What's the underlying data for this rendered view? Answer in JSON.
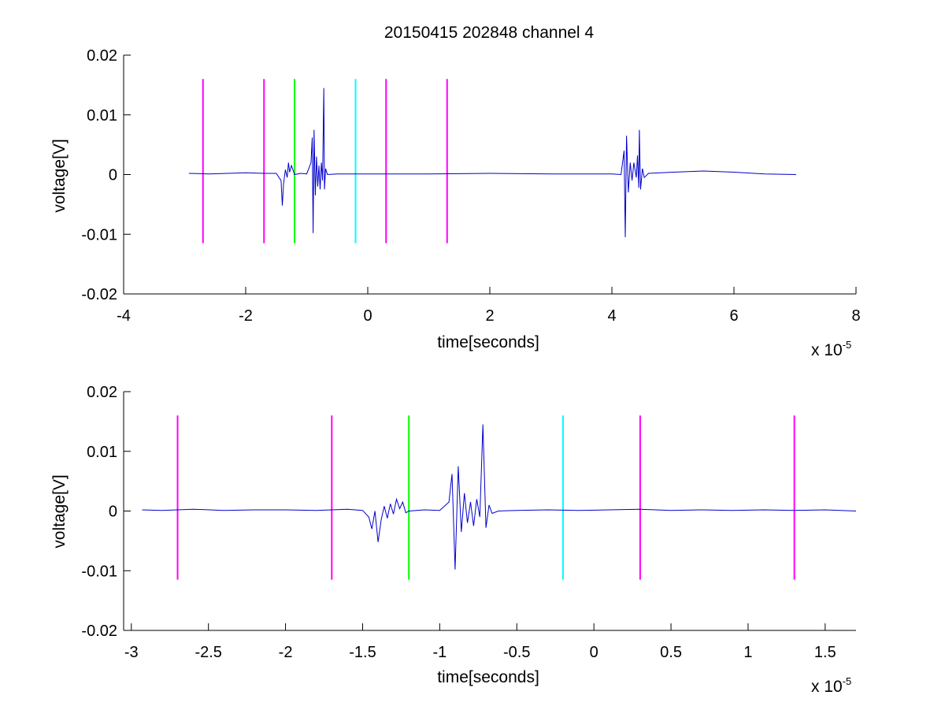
{
  "figure_title": "20150415 202848 channel 4",
  "chart_data": [
    {
      "type": "line",
      "xlabel": "time[seconds]",
      "ylabel": "voltage[V]",
      "x_exponent_base": "x 10",
      "x_exponent_power": "-5",
      "xlim": [
        -4,
        8
      ],
      "ylim": [
        -0.02,
        0.02
      ],
      "xticks": [
        -4,
        -2,
        0,
        2,
        4,
        6,
        8
      ],
      "xtick_labels": [
        "-4",
        "-2",
        "0",
        "2",
        "4",
        "6",
        "8"
      ],
      "yticks": [
        -0.02,
        -0.01,
        0,
        0.01,
        0.02
      ],
      "ytick_labels": [
        "-0.02",
        "-0.01",
        "0",
        "0.01",
        "0.02"
      ],
      "grid": false,
      "markers": [
        {
          "x": -2.7,
          "color": "#ff00ff"
        },
        {
          "x": -1.7,
          "color": "#ff00ff"
        },
        {
          "x": -1.2,
          "color": "#00ff00"
        },
        {
          "x": -0.2,
          "color": "#00ffff"
        },
        {
          "x": 0.3,
          "color": "#ff00ff"
        },
        {
          "x": 1.3,
          "color": "#ff00ff"
        }
      ],
      "marker_range": [
        -0.0115,
        0.016
      ],
      "series": [
        {
          "color": "#0000cc",
          "points": [
            [
              -2.93,
              0.0002
            ],
            [
              -2.6,
              0.0001
            ],
            [
              -2.3,
              0.0002
            ],
            [
              -2.0,
              0.0003
            ],
            [
              -1.7,
              0.0002
            ],
            [
              -1.5,
              0.0002
            ],
            [
              -1.42,
              -0.001
            ],
            [
              -1.4,
              -0.0052
            ],
            [
              -1.38,
              -0.0015
            ],
            [
              -1.35,
              0.0008
            ],
            [
              -1.32,
              -0.0005
            ],
            [
              -1.3,
              0.002
            ],
            [
              -1.28,
              0.0004
            ],
            [
              -1.25,
              0.0015
            ],
            [
              -1.2,
              0.0
            ],
            [
              -1.1,
              0.0002
            ],
            [
              -1.0,
              0.0001
            ],
            [
              -0.93,
              0.002
            ],
            [
              -0.91,
              0.0062
            ],
            [
              -0.895,
              -0.0098
            ],
            [
              -0.88,
              0.0075
            ],
            [
              -0.86,
              -0.0035
            ],
            [
              -0.84,
              0.003
            ],
            [
              -0.82,
              -0.002
            ],
            [
              -0.8,
              0.0015
            ],
            [
              -0.78,
              -0.0025
            ],
            [
              -0.76,
              0.002
            ],
            [
              -0.74,
              -0.001
            ],
            [
              -0.72,
              0.0145
            ],
            [
              -0.71,
              -0.0025
            ],
            [
              -0.69,
              0.001
            ],
            [
              -0.66,
              0.0
            ],
            [
              -0.5,
              0.0001
            ],
            [
              0.0,
              0.0001
            ],
            [
              1.0,
              0.0001
            ],
            [
              2.0,
              0.0002
            ],
            [
              3.0,
              0.0001
            ],
            [
              4.0,
              0.0001
            ],
            [
              4.15,
              0.0
            ],
            [
              4.2,
              0.004
            ],
            [
              4.22,
              -0.0105
            ],
            [
              4.24,
              0.0065
            ],
            [
              4.27,
              -0.003
            ],
            [
              4.3,
              0.002
            ],
            [
              4.33,
              -0.001
            ],
            [
              4.36,
              0.002
            ],
            [
              4.4,
              -0.0005
            ],
            [
              4.42,
              0.0032
            ],
            [
              4.44,
              -0.0022
            ],
            [
              4.45,
              0.0075
            ],
            [
              4.47,
              -0.0025
            ],
            [
              4.5,
              0.001
            ],
            [
              4.53,
              -0.0005
            ],
            [
              4.6,
              0.0002
            ],
            [
              5.0,
              0.0004
            ],
            [
              5.5,
              0.0006
            ],
            [
              6.0,
              0.0004
            ],
            [
              6.5,
              0.0001
            ],
            [
              7.02,
              0.0
            ]
          ]
        }
      ]
    },
    {
      "type": "line",
      "xlabel": "time[seconds]",
      "ylabel": "voltage[V]",
      "x_exponent_base": "x 10",
      "x_exponent_power": "-5",
      "xlim": [
        -3.05,
        1.7
      ],
      "ylim": [
        -0.02,
        0.02
      ],
      "xticks": [
        -3,
        -2.5,
        -2,
        -1.5,
        -1,
        -0.5,
        0,
        0.5,
        1,
        1.5
      ],
      "xtick_labels": [
        "-3",
        "-2.5",
        "-2",
        "-1.5",
        "-1",
        "-0.5",
        "0",
        "0.5",
        "1",
        "1.5"
      ],
      "yticks": [
        -0.02,
        -0.01,
        0,
        0.01,
        0.02
      ],
      "ytick_labels": [
        "-0.02",
        "-0.01",
        "0",
        "0.01",
        "0.02"
      ],
      "grid": false,
      "markers": [
        {
          "x": -2.7,
          "color": "#ff00ff"
        },
        {
          "x": -1.7,
          "color": "#ff00ff"
        },
        {
          "x": -1.2,
          "color": "#00ff00"
        },
        {
          "x": -0.2,
          "color": "#00ffff"
        },
        {
          "x": 0.3,
          "color": "#ff00ff"
        },
        {
          "x": 1.3,
          "color": "#ff00ff"
        }
      ],
      "marker_range": [
        -0.0115,
        0.016
      ],
      "series": [
        {
          "color": "#0000cc",
          "points": [
            [
              -2.93,
              0.0002
            ],
            [
              -2.8,
              0.0001
            ],
            [
              -2.6,
              0.0003
            ],
            [
              -2.4,
              0.0001
            ],
            [
              -2.2,
              0.0002
            ],
            [
              -2.0,
              0.0002
            ],
            [
              -1.8,
              0.0001
            ],
            [
              -1.6,
              0.0003
            ],
            [
              -1.5,
              0.0001
            ],
            [
              -1.46,
              -0.001
            ],
            [
              -1.44,
              -0.003
            ],
            [
              -1.42,
              0.0
            ],
            [
              -1.4,
              -0.0052
            ],
            [
              -1.38,
              -0.0015
            ],
            [
              -1.36,
              0.0008
            ],
            [
              -1.34,
              -0.0012
            ],
            [
              -1.32,
              0.0012
            ],
            [
              -1.3,
              -0.0005
            ],
            [
              -1.28,
              0.002
            ],
            [
              -1.26,
              0.0004
            ],
            [
              -1.24,
              0.0015
            ],
            [
              -1.22,
              -0.0003
            ],
            [
              -1.2,
              0.0
            ],
            [
              -1.1,
              0.0002
            ],
            [
              -1.0,
              0.0001
            ],
            [
              -0.94,
              0.0015
            ],
            [
              -0.92,
              0.0062
            ],
            [
              -0.9,
              -0.0098
            ],
            [
              -0.88,
              0.0075
            ],
            [
              -0.86,
              -0.0035
            ],
            [
              -0.84,
              0.003
            ],
            [
              -0.82,
              -0.002
            ],
            [
              -0.8,
              0.0015
            ],
            [
              -0.78,
              -0.0025
            ],
            [
              -0.76,
              0.002
            ],
            [
              -0.74,
              -0.001
            ],
            [
              -0.72,
              0.0145
            ],
            [
              -0.7,
              -0.0028
            ],
            [
              -0.68,
              0.001
            ],
            [
              -0.66,
              -0.0004
            ],
            [
              -0.62,
              0.0
            ],
            [
              -0.5,
              0.0001
            ],
            [
              -0.3,
              0.0002
            ],
            [
              -0.1,
              0.0001
            ],
            [
              0.1,
              0.0002
            ],
            [
              0.3,
              0.0003
            ],
            [
              0.5,
              0.0001
            ],
            [
              0.7,
              0.0002
            ],
            [
              0.9,
              0.0001
            ],
            [
              1.1,
              0.0002
            ],
            [
              1.3,
              0.0001
            ],
            [
              1.5,
              0.0002
            ],
            [
              1.7,
              0.0
            ]
          ]
        }
      ]
    }
  ]
}
